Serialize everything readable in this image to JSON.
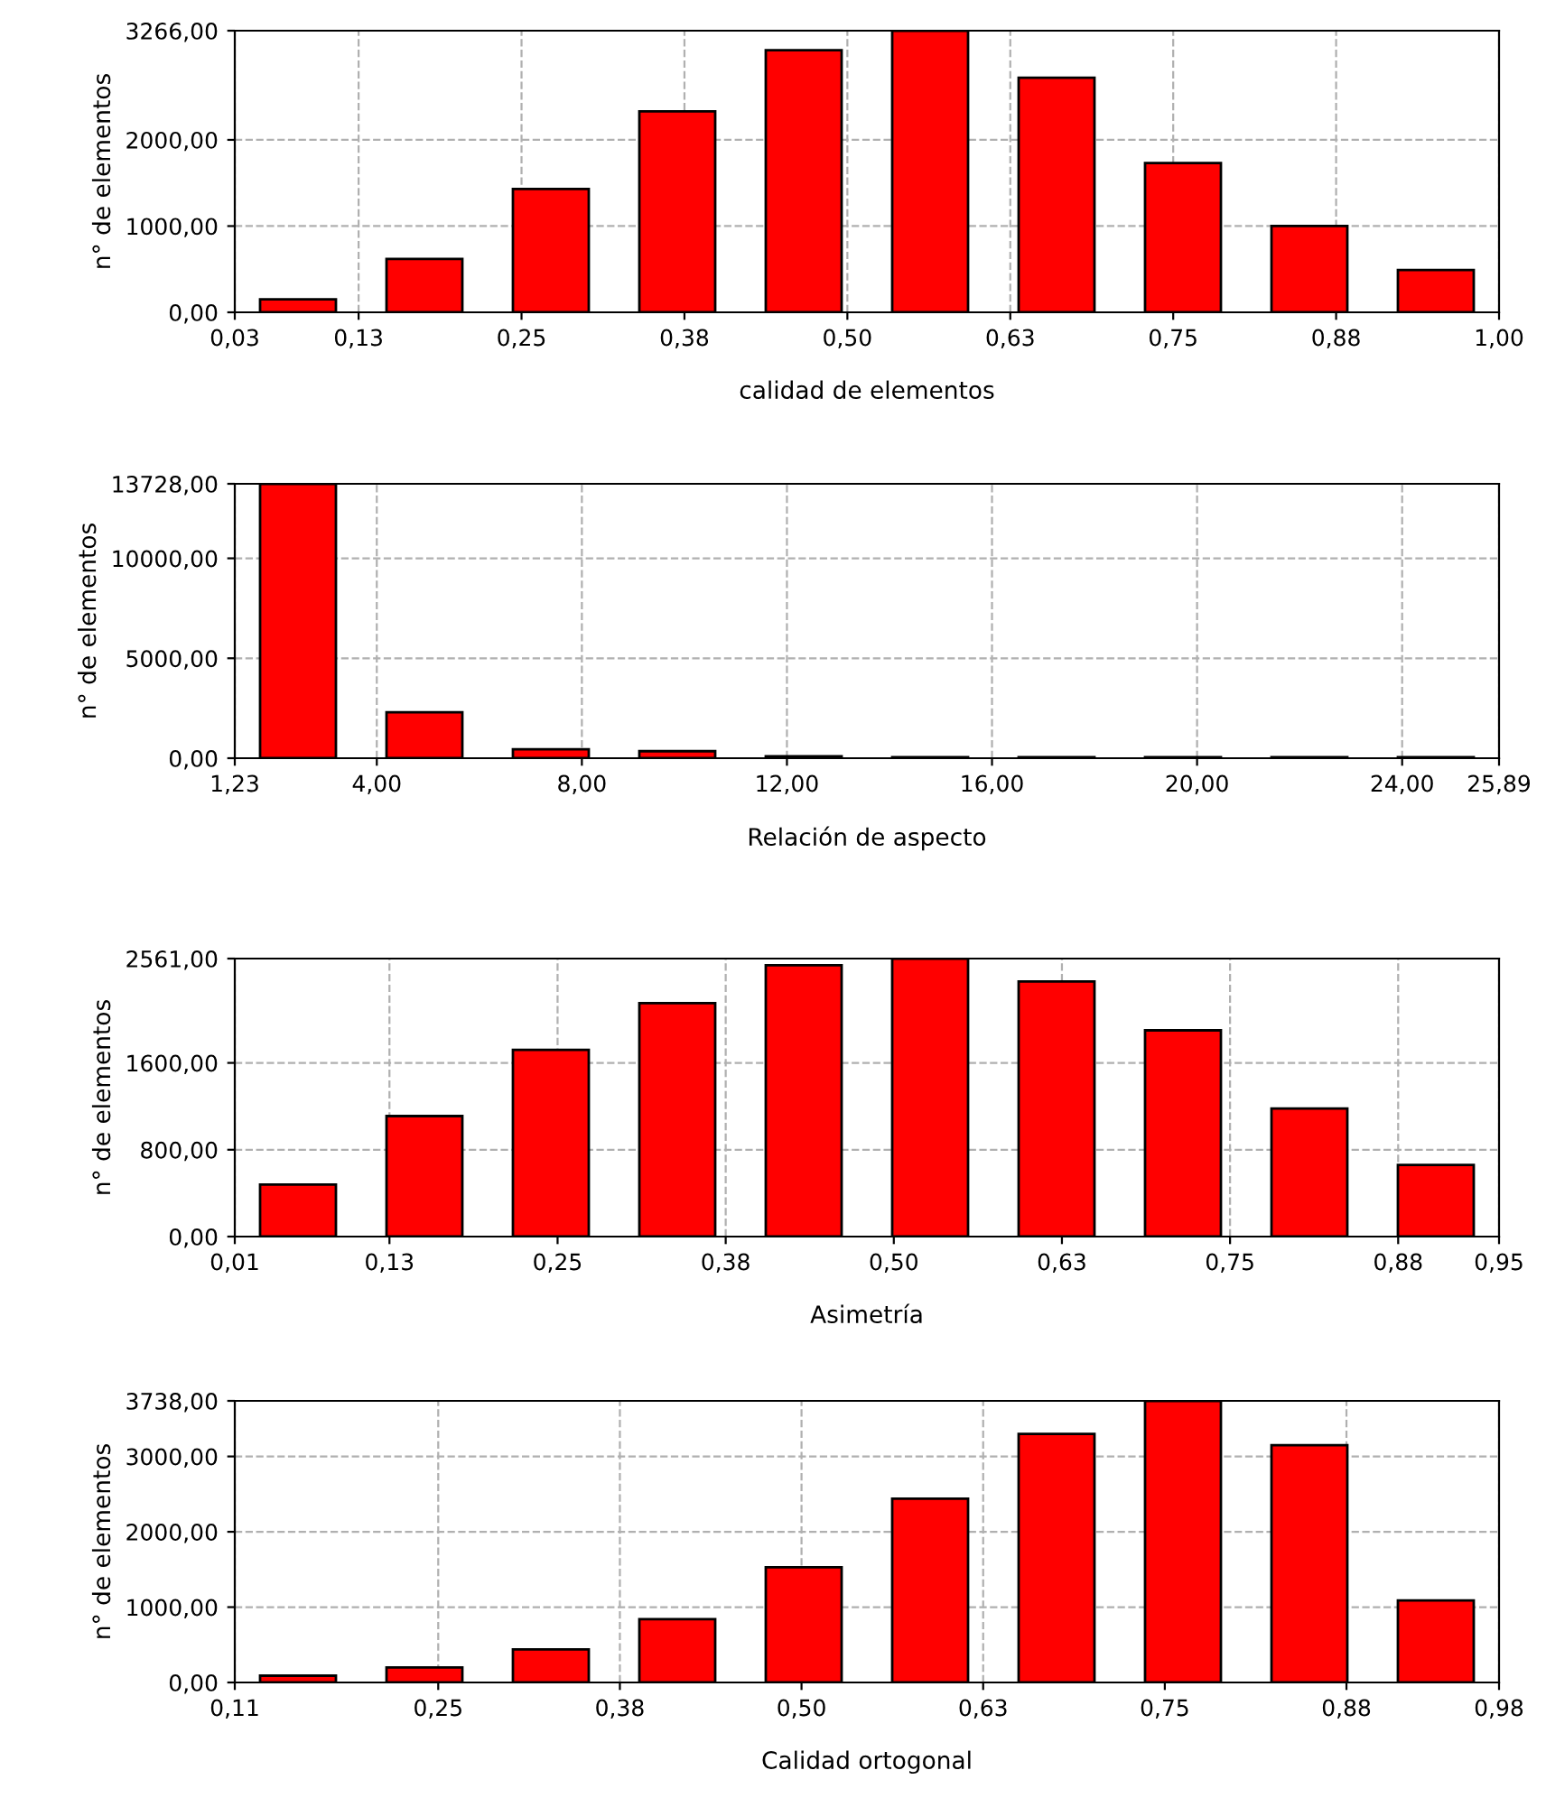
{
  "chart_data": [
    {
      "type": "histogram",
      "xlabel": "calidad de elementos",
      "ylabel": "n° de elementos",
      "color": "#ff0000",
      "grid": true,
      "bins": [
        0.03,
        0.127,
        0.224,
        0.321,
        0.418,
        0.515,
        0.612,
        0.709,
        0.806,
        0.903,
        1.0
      ],
      "values": [
        150,
        620,
        1430,
        2330,
        3040,
        3266,
        2720,
        1730,
        1000,
        490
      ],
      "xlim": [
        0.03,
        1.0
      ],
      "xticks": [
        {
          "value": 0.03,
          "label": "0,03"
        },
        {
          "value": 0.125,
          "label": "0,13"
        },
        {
          "value": 0.25,
          "label": "0,25"
        },
        {
          "value": 0.375,
          "label": "0,38"
        },
        {
          "value": 0.5,
          "label": "0,50"
        },
        {
          "value": 0.625,
          "label": "0,63"
        },
        {
          "value": 0.75,
          "label": "0,75"
        },
        {
          "value": 0.875,
          "label": "0,88"
        },
        {
          "value": 1.0,
          "label": "1,00"
        }
      ],
      "ylim": [
        0,
        3266
      ],
      "yticks": [
        {
          "value": 0,
          "label": "0,00"
        },
        {
          "value": 1000,
          "label": "1000,00"
        },
        {
          "value": 2000,
          "label": "2000,00"
        },
        {
          "value": 3266,
          "label": "3266,00"
        }
      ]
    },
    {
      "type": "histogram",
      "xlabel": "Relación de aspecto",
      "ylabel": "n° de elementos",
      "color": "#ff0000",
      "grid": true,
      "bins": [
        1.23,
        3.696,
        6.162,
        8.628,
        11.094,
        13.56,
        16.026,
        18.492,
        20.958,
        23.424,
        25.89
      ],
      "values": [
        13728,
        2300,
        450,
        350,
        100,
        50,
        50,
        50,
        50,
        50
      ],
      "xlim": [
        1.23,
        25.89
      ],
      "xticks": [
        {
          "value": 1.23,
          "label": "1,23"
        },
        {
          "value": 4,
          "label": "4,00"
        },
        {
          "value": 8,
          "label": "8,00"
        },
        {
          "value": 12,
          "label": "12,00"
        },
        {
          "value": 16,
          "label": "16,00"
        },
        {
          "value": 20,
          "label": "20,00"
        },
        {
          "value": 24,
          "label": "24,00"
        },
        {
          "value": 25.89,
          "label": "25,89"
        }
      ],
      "ylim": [
        0,
        13728
      ],
      "yticks": [
        {
          "value": 0,
          "label": "0,00"
        },
        {
          "value": 5000,
          "label": "5000,00"
        },
        {
          "value": 10000,
          "label": "10000,00"
        },
        {
          "value": 13728,
          "label": "13728,00"
        }
      ]
    },
    {
      "type": "histogram",
      "xlabel": "Asimetría",
      "ylabel": "n° de elementos",
      "color": "#ff0000",
      "grid": true,
      "bins": [
        0.01,
        0.104,
        0.198,
        0.292,
        0.386,
        0.48,
        0.574,
        0.668,
        0.762,
        0.856,
        0.95
      ],
      "values": [
        480,
        1110,
        1720,
        2150,
        2500,
        2561,
        2350,
        1900,
        1180,
        660
      ],
      "xlim": [
        0.01,
        0.95
      ],
      "xticks": [
        {
          "value": 0.01,
          "label": "0,01"
        },
        {
          "value": 0.125,
          "label": "0,13"
        },
        {
          "value": 0.25,
          "label": "0,25"
        },
        {
          "value": 0.375,
          "label": "0,38"
        },
        {
          "value": 0.5,
          "label": "0,50"
        },
        {
          "value": 0.625,
          "label": "0,63"
        },
        {
          "value": 0.75,
          "label": "0,75"
        },
        {
          "value": 0.875,
          "label": "0,88"
        },
        {
          "value": 0.95,
          "label": "0,95"
        }
      ],
      "ylim": [
        0,
        2561
      ],
      "yticks": [
        {
          "value": 0,
          "label": "0,00"
        },
        {
          "value": 800,
          "label": "800,00"
        },
        {
          "value": 1600,
          "label": "1600,00"
        },
        {
          "value": 2561,
          "label": "2561,00"
        }
      ]
    },
    {
      "type": "histogram",
      "xlabel": "Calidad ortogonal",
      "ylabel": "n° de elementos",
      "color": "#ff0000",
      "grid": true,
      "bins": [
        0.11,
        0.197,
        0.284,
        0.371,
        0.458,
        0.545,
        0.632,
        0.719,
        0.806,
        0.893,
        0.98
      ],
      "values": [
        90,
        200,
        440,
        840,
        1530,
        2440,
        3300,
        3738,
        3150,
        1090
      ],
      "xlim": [
        0.11,
        0.98
      ],
      "xticks": [
        {
          "value": 0.11,
          "label": "0,11"
        },
        {
          "value": 0.25,
          "label": "0,25"
        },
        {
          "value": 0.375,
          "label": "0,38"
        },
        {
          "value": 0.5,
          "label": "0,50"
        },
        {
          "value": 0.625,
          "label": "0,63"
        },
        {
          "value": 0.75,
          "label": "0,75"
        },
        {
          "value": 0.875,
          "label": "0,88"
        },
        {
          "value": 0.98,
          "label": "0,98"
        }
      ],
      "ylim": [
        0,
        3738
      ],
      "yticks": [
        {
          "value": 0,
          "label": "0,00"
        },
        {
          "value": 1000,
          "label": "1000,00"
        },
        {
          "value": 2000,
          "label": "2000,00"
        },
        {
          "value": 3000,
          "label": "3000,00"
        },
        {
          "value": 3738,
          "label": "3738,00"
        }
      ]
    }
  ]
}
